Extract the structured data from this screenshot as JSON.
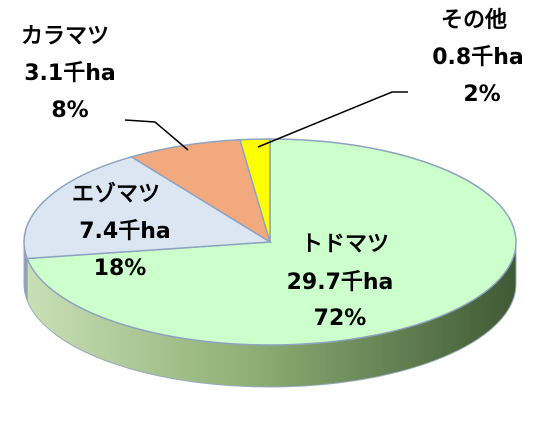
{
  "chart_data": {
    "type": "pie",
    "title": "",
    "unit": "千ha",
    "slices": [
      {
        "name": "トドマツ",
        "value": 29.7,
        "value_label": "29.7千ha",
        "percent_label": "72%",
        "color": "#CCFFCC",
        "side_color": "#6E8B5E"
      },
      {
        "name": "エゾマツ",
        "value": 7.4,
        "value_label": "7.4千ha",
        "percent_label": "18%",
        "color": "#DCE6F2",
        "side_color": "#8DA0B5"
      },
      {
        "name": "カラマツ",
        "value": 3.1,
        "value_label": "3.1千ha",
        "percent_label": "8%",
        "color": "#F2A97E",
        "side_color": "#B5704A"
      },
      {
        "name": "その他",
        "value": 0.8,
        "value_label": "0.8千ha",
        "percent_label": "2%",
        "color": "#FFFF00",
        "side_color": "#B5B500"
      }
    ]
  }
}
